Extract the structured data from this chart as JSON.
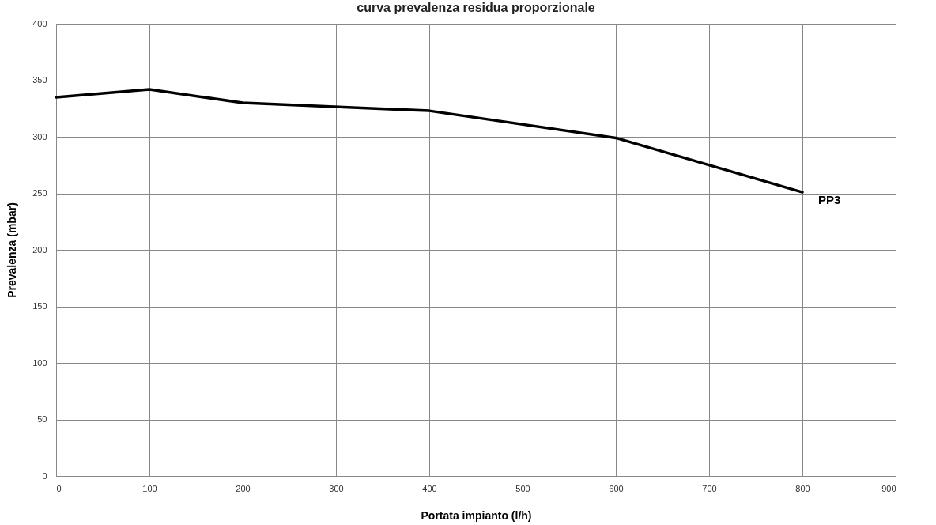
{
  "chart_data": {
    "type": "line",
    "title": "curva prevalenza residua proporzionale",
    "xlabel": "Portata impianto (l/h)",
    "ylabel": "Prevalenza (mbar)",
    "x": [
      0,
      100,
      200,
      400,
      600,
      800
    ],
    "series": [
      {
        "name": "PP3",
        "color": "#000000",
        "values": [
          335,
          342,
          330,
          323,
          299,
          251
        ]
      }
    ],
    "xlim": [
      0,
      900
    ],
    "xticks": [
      0,
      100,
      200,
      300,
      400,
      500,
      600,
      700,
      800,
      900
    ],
    "ylim": [
      0,
      400
    ],
    "yticks": [
      0,
      50,
      100,
      150,
      200,
      250,
      300,
      350,
      400
    ],
    "grid": true,
    "legend": false,
    "marker": "none",
    "line_style": "solid"
  }
}
